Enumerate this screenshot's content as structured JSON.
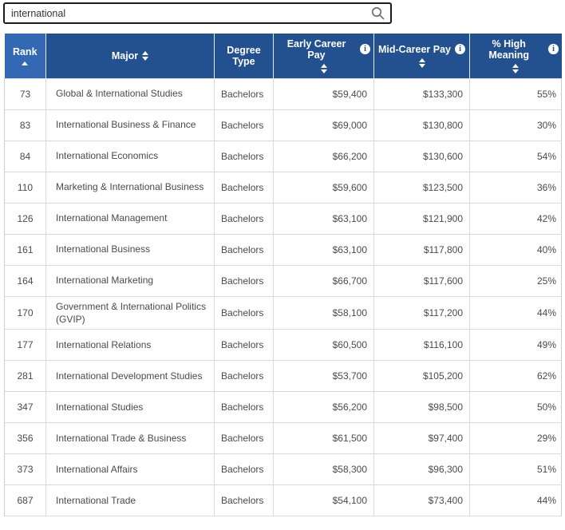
{
  "search": {
    "value": "international"
  },
  "icons": {
    "info_glyph": "i"
  },
  "colors": {
    "header_bg": "#23508f",
    "header_active_bg": "#3368b5",
    "body_text": "#4a4a4a",
    "border": "#d9d9d9"
  },
  "table": {
    "columns": [
      {
        "label": "Rank",
        "sort": "ascending"
      },
      {
        "label": "Major",
        "sort": "sortable"
      },
      {
        "label": "Degree Type",
        "sort": "none"
      },
      {
        "label": "Early Career Pay",
        "sort": "sortable",
        "info": true
      },
      {
        "label": "Mid-Career Pay",
        "sort": "sortable",
        "info": true
      },
      {
        "label": "% High Meaning",
        "sort": "sortable",
        "info": true
      }
    ],
    "rows": [
      {
        "rank": "73",
        "major": "Global & International Studies",
        "degree": "Bachelors",
        "early_pay": "$59,400",
        "mid_pay": "$133,300",
        "high_meaning": "55%"
      },
      {
        "rank": "83",
        "major": "International Business & Finance",
        "degree": "Bachelors",
        "early_pay": "$69,000",
        "mid_pay": "$130,800",
        "high_meaning": "30%"
      },
      {
        "rank": "84",
        "major": "International Economics",
        "degree": "Bachelors",
        "early_pay": "$66,200",
        "mid_pay": "$130,600",
        "high_meaning": "54%"
      },
      {
        "rank": "110",
        "major": "Marketing & International Business",
        "degree": "Bachelors",
        "early_pay": "$59,600",
        "mid_pay": "$123,500",
        "high_meaning": "36%"
      },
      {
        "rank": "126",
        "major": "International Management",
        "degree": "Bachelors",
        "early_pay": "$63,100",
        "mid_pay": "$121,900",
        "high_meaning": "42%"
      },
      {
        "rank": "161",
        "major": "International Business",
        "degree": "Bachelors",
        "early_pay": "$63,100",
        "mid_pay": "$117,800",
        "high_meaning": "40%"
      },
      {
        "rank": "164",
        "major": "International Marketing",
        "degree": "Bachelors",
        "early_pay": "$66,700",
        "mid_pay": "$117,600",
        "high_meaning": "25%"
      },
      {
        "rank": "170",
        "major": "Government & International Politics (GVIP)",
        "degree": "Bachelors",
        "early_pay": "$58,100",
        "mid_pay": "$117,200",
        "high_meaning": "44%"
      },
      {
        "rank": "177",
        "major": "International Relations",
        "degree": "Bachelors",
        "early_pay": "$60,500",
        "mid_pay": "$116,100",
        "high_meaning": "49%"
      },
      {
        "rank": "281",
        "major": "International Development Studies",
        "degree": "Bachelors",
        "early_pay": "$53,700",
        "mid_pay": "$105,200",
        "high_meaning": "62%"
      },
      {
        "rank": "347",
        "major": "International Studies",
        "degree": "Bachelors",
        "early_pay": "$56,200",
        "mid_pay": "$98,500",
        "high_meaning": "50%"
      },
      {
        "rank": "356",
        "major": "International Trade & Business",
        "degree": "Bachelors",
        "early_pay": "$61,500",
        "mid_pay": "$97,400",
        "high_meaning": "29%"
      },
      {
        "rank": "373",
        "major": "International Affairs",
        "degree": "Bachelors",
        "early_pay": "$58,300",
        "mid_pay": "$96,300",
        "high_meaning": "51%"
      },
      {
        "rank": "687",
        "major": "International Trade",
        "degree": "Bachelors",
        "early_pay": "$54,100",
        "mid_pay": "$73,400",
        "high_meaning": "44%"
      }
    ]
  }
}
